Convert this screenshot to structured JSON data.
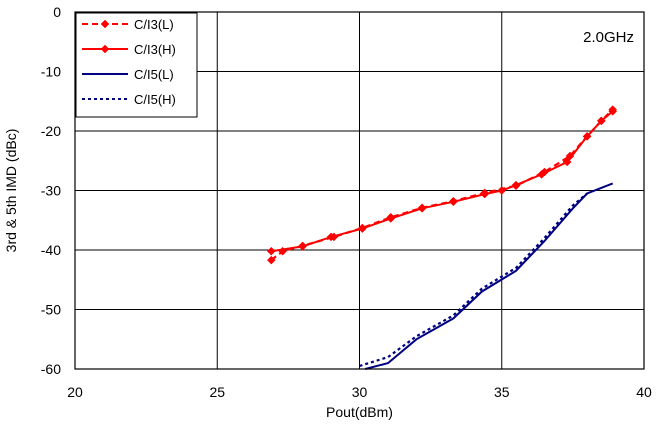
{
  "chart_data": {
    "type": "line",
    "title": "",
    "annotation": "2.0GHz",
    "xlabel": "Pout(dBm)",
    "ylabel": "3rd & 5th IMD (dBc)",
    "xlim": [
      20,
      40
    ],
    "ylim": [
      -60,
      0
    ],
    "xticks": [
      "20",
      "25",
      "30",
      "35",
      "40"
    ],
    "yticks": [
      "0",
      "-10",
      "-20",
      "-30",
      "-40",
      "-50",
      "-60"
    ],
    "grid": true,
    "legend_position": "top-left",
    "series": [
      {
        "name": "C/I3(L)",
        "color": "#ff0000",
        "dash": "dashed",
        "marker": "diamond",
        "x": [
          26.9,
          27.3,
          28.0,
          29.1,
          30.1,
          31.1,
          32.2,
          33.3,
          34.4,
          35.5,
          36.5,
          37.4,
          38.0,
          38.5,
          38.9
        ],
        "y": [
          -41.7,
          -40.2,
          -39.3,
          -37.8,
          -36.3,
          -34.5,
          -32.9,
          -31.8,
          -30.4,
          -29.2,
          -26.9,
          -24.2,
          -20.9,
          -18.3,
          -16.4
        ]
      },
      {
        "name": "C/I3(H)",
        "color": "#ff0000",
        "dash": "solid",
        "marker": "diamond",
        "x": [
          26.9,
          28.0,
          29.0,
          30.1,
          31.1,
          32.2,
          33.3,
          34.4,
          35.0,
          35.5,
          36.4,
          37.3,
          38.0,
          38.5,
          38.9
        ],
        "y": [
          -40.2,
          -39.4,
          -37.8,
          -36.4,
          -34.7,
          -33.0,
          -31.9,
          -30.6,
          -30.0,
          -29.1,
          -27.3,
          -25.2,
          -20.9,
          -18.3,
          -16.7
        ]
      },
      {
        "name": "C/I5(L)",
        "color": "#000080",
        "dash": "solid",
        "marker": "none",
        "x": [
          30.2,
          31.0,
          32.0,
          33.3,
          34.3,
          35.5,
          36.5,
          37.5,
          38.0,
          38.9
        ],
        "y": [
          -60.0,
          -59.0,
          -55.0,
          -51.5,
          -47.0,
          -43.5,
          -38.5,
          -33.0,
          -30.5,
          -28.8
        ]
      },
      {
        "name": "C/I5(H)",
        "color": "#000080",
        "dash": "dotted",
        "marker": "none",
        "x": [
          30.0,
          31.0,
          32.0,
          33.3,
          34.3,
          35.5,
          36.5,
          37.5,
          38.0
        ],
        "y": [
          -59.5,
          -58.0,
          -54.5,
          -51.0,
          -46.5,
          -43.0,
          -38.0,
          -32.5,
          -30.5
        ]
      }
    ]
  }
}
